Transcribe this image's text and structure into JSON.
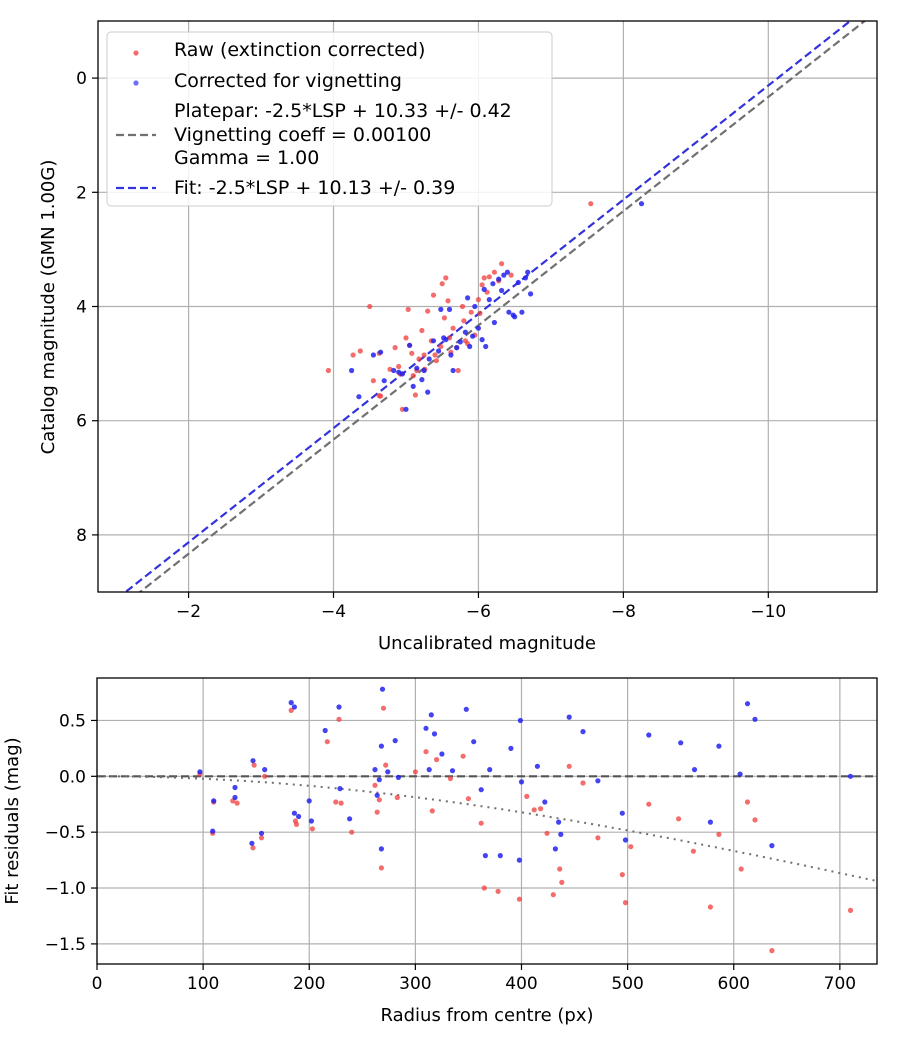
{
  "chart_data": [
    {
      "type": "scatter",
      "xlabel": "Uncalibrated magnitude",
      "ylabel": "Catalog magnitude (GMN 1.00G)",
      "xlim": [
        -0.75,
        -11.5
      ],
      "ylim": [
        9.0,
        -1.0
      ],
      "xticks": [
        -2,
        -4,
        -6,
        -8,
        -10
      ],
      "xtick_labels": [
        "−2",
        "−4",
        "−6",
        "−8",
        "−10"
      ],
      "yticks": [
        0,
        2,
        4,
        6,
        8
      ],
      "ytick_labels": [
        "0",
        "2",
        "4",
        "6",
        "8"
      ],
      "grid": true,
      "legend": {
        "position": "top-left",
        "entries": [
          {
            "label": "Raw (extinction corrected)",
            "kind": "marker",
            "color": "#f03c3c"
          },
          {
            "label": "Corrected for vignetting",
            "kind": "marker",
            "color": "#2222ee"
          },
          {
            "label": "Platepar: -2.5*LSP + 10.33 +/- 0.42",
            "line2": "Vignetting coeff = 0.00100",
            "line3": "Gamma = 1.00",
            "kind": "dashed-line",
            "color": "#707070"
          },
          {
            "label": "Fit: -2.5*LSP + 10.13 +/- 0.39",
            "kind": "dashed-line",
            "color": "#3333dd"
          }
        ]
      },
      "lines": [
        {
          "name": "Platepar",
          "slope": 1.0,
          "intercept": 10.33,
          "color": "#707070",
          "dash": "dashed"
        },
        {
          "name": "Fit",
          "slope": 1.0,
          "intercept": 10.13,
          "color": "#3333dd",
          "dash": "dashed"
        }
      ],
      "series": [
        {
          "name": "Raw (extinction corrected)",
          "color": "#f03c3c",
          "points": [
            [
              -3.93,
              5.12
            ],
            [
              -4.27,
              4.85
            ],
            [
              -4.37,
              4.78
            ],
            [
              -4.5,
              4.0
            ],
            [
              -4.63,
              4.82
            ],
            [
              -4.55,
              5.3
            ],
            [
              -4.63,
              5.56
            ],
            [
              -4.65,
              5.57
            ],
            [
              -4.78,
              5.1
            ],
            [
              -4.85,
              4.72
            ],
            [
              -4.9,
              5.05
            ],
            [
              -4.92,
              5.18
            ],
            [
              -4.95,
              5.8
            ],
            [
              -5.0,
              4.55
            ],
            [
              -5.03,
              4.05
            ],
            [
              -5.05,
              4.68
            ],
            [
              -5.08,
              4.82
            ],
            [
              -5.1,
              5.21
            ],
            [
              -5.13,
              5.55
            ],
            [
              -5.15,
              5.12
            ],
            [
              -5.18,
              4.92
            ],
            [
              -5.22,
              4.42
            ],
            [
              -5.25,
              4.85
            ],
            [
              -5.26,
              5.1
            ],
            [
              -5.3,
              4.08
            ],
            [
              -5.35,
              4.6
            ],
            [
              -5.38,
              3.8
            ],
            [
              -5.4,
              4.85
            ],
            [
              -5.42,
              4.95
            ],
            [
              -5.48,
              4.7
            ],
            [
              -5.5,
              3.6
            ],
            [
              -5.53,
              4.2
            ],
            [
              -5.55,
              3.5
            ],
            [
              -5.58,
              3.9
            ],
            [
              -5.6,
              4.55
            ],
            [
              -5.62,
              4.8
            ],
            [
              -5.65,
              4.38
            ],
            [
              -5.7,
              4.72
            ],
            [
              -5.72,
              5.12
            ],
            [
              -5.78,
              4.0
            ],
            [
              -5.8,
              4.25
            ],
            [
              -5.82,
              4.6
            ],
            [
              -5.85,
              4.65
            ],
            [
              -5.9,
              4.1
            ],
            [
              -5.95,
              4.5
            ],
            [
              -6.0,
              3.88
            ],
            [
              -6.02,
              4.12
            ],
            [
              -6.05,
              3.62
            ],
            [
              -6.08,
              3.5
            ],
            [
              -6.12,
              3.75
            ],
            [
              -6.15,
              3.48
            ],
            [
              -6.22,
              3.4
            ],
            [
              -6.28,
              3.55
            ],
            [
              -6.32,
              3.25
            ],
            [
              -6.45,
              3.45
            ],
            [
              -7.55,
              2.2
            ]
          ]
        },
        {
          "name": "Corrected for vignetting",
          "color": "#2222ee",
          "points": [
            [
              -4.25,
              5.12
            ],
            [
              -4.35,
              5.58
            ],
            [
              -4.55,
              4.85
            ],
            [
              -4.65,
              4.8
            ],
            [
              -4.7,
              5.3
            ],
            [
              -4.83,
              5.12
            ],
            [
              -4.9,
              5.15
            ],
            [
              -4.95,
              5.18
            ],
            [
              -5.0,
              5.8
            ],
            [
              -5.05,
              4.68
            ],
            [
              -5.1,
              5.4
            ],
            [
              -5.15,
              5.08
            ],
            [
              -5.22,
              5.28
            ],
            [
              -5.25,
              5.12
            ],
            [
              -5.3,
              5.5
            ],
            [
              -5.32,
              4.92
            ],
            [
              -5.38,
              4.6
            ],
            [
              -5.45,
              4.78
            ],
            [
              -5.48,
              4.05
            ],
            [
              -5.52,
              4.55
            ],
            [
              -5.55,
              4.58
            ],
            [
              -5.6,
              4.05
            ],
            [
              -5.62,
              4.85
            ],
            [
              -5.65,
              5.12
            ],
            [
              -5.7,
              4.72
            ],
            [
              -5.75,
              4.62
            ],
            [
              -5.82,
              4.45
            ],
            [
              -5.85,
              3.85
            ],
            [
              -5.88,
              4.7
            ],
            [
              -5.92,
              4.52
            ],
            [
              -5.95,
              4.0
            ],
            [
              -6.0,
              4.38
            ],
            [
              -6.05,
              4.58
            ],
            [
              -6.08,
              3.7
            ],
            [
              -6.1,
              4.7
            ],
            [
              -6.15,
              3.88
            ],
            [
              -6.2,
              3.6
            ],
            [
              -6.22,
              4.28
            ],
            [
              -6.28,
              3.52
            ],
            [
              -6.32,
              3.72
            ],
            [
              -6.35,
              3.45
            ],
            [
              -6.4,
              3.4
            ],
            [
              -6.42,
              4.1
            ],
            [
              -6.48,
              4.15
            ],
            [
              -6.5,
              4.18
            ],
            [
              -6.55,
              3.58
            ],
            [
              -6.6,
              4.1
            ],
            [
              -6.65,
              3.5
            ],
            [
              -6.68,
              3.4
            ],
            [
              -6.72,
              3.78
            ],
            [
              -8.25,
              2.2
            ]
          ]
        }
      ]
    },
    {
      "type": "scatter",
      "xlabel": "Radius from centre (px)",
      "ylabel": "Fit residuals (mag)",
      "xlim": [
        0,
        735
      ],
      "ylim": [
        -1.68,
        0.88
      ],
      "xticks": [
        0,
        100,
        200,
        300,
        400,
        500,
        600,
        700
      ],
      "xtick_labels": [
        "0",
        "100",
        "200",
        "300",
        "400",
        "500",
        "600",
        "700"
      ],
      "yticks": [
        0.5,
        0.0,
        -0.5,
        -1.0,
        -1.5
      ],
      "ytick_labels": [
        "0.5",
        "0.0",
        "−0.5",
        "−1.0",
        "−1.5"
      ],
      "grid": true,
      "lines": [
        {
          "name": "zero",
          "kind": "horizontal",
          "y": 0.0,
          "color": "#555555",
          "dash": "dashed"
        },
        {
          "name": "vignetting model",
          "kind": "curve",
          "vignetting_coeff": 0.001,
          "color": "#707070",
          "dash": "dotted"
        }
      ],
      "series": [
        {
          "name": "Raw (extinction corrected)",
          "color": "#f03c3c",
          "points": [
            [
              97,
              0.02
            ],
            [
              109,
              -0.51
            ],
            [
              110,
              -0.23
            ],
            [
              128,
              -0.22
            ],
            [
              132,
              -0.24
            ],
            [
              147,
              -0.64
            ],
            [
              148,
              0.1
            ],
            [
              155,
              -0.55
            ],
            [
              158,
              0.0
            ],
            [
              183,
              0.59
            ],
            [
              187,
              -0.4
            ],
            [
              188,
              -0.43
            ],
            [
              203,
              -0.47
            ],
            [
              217,
              0.31
            ],
            [
              225,
              -0.23
            ],
            [
              228,
              0.51
            ],
            [
              230,
              -0.24
            ],
            [
              240,
              -0.5
            ],
            [
              262,
              -0.08
            ],
            [
              264,
              -0.32
            ],
            [
              266,
              -0.21
            ],
            [
              268,
              -0.82
            ],
            [
              270,
              0.61
            ],
            [
              272,
              0.1
            ],
            [
              283,
              -0.19
            ],
            [
              300,
              0.04
            ],
            [
              310,
              0.22
            ],
            [
              316,
              -0.31
            ],
            [
              320,
              0.15
            ],
            [
              333,
              -0.02
            ],
            [
              345,
              0.18
            ],
            [
              350,
              -0.2
            ],
            [
              362,
              -0.42
            ],
            [
              365,
              -1.0
            ],
            [
              378,
              -1.03
            ],
            [
              398,
              -1.1
            ],
            [
              405,
              -0.18
            ],
            [
              412,
              -0.3
            ],
            [
              418,
              -0.29
            ],
            [
              424,
              -0.51
            ],
            [
              430,
              -1.06
            ],
            [
              436,
              -0.83
            ],
            [
              438,
              -0.95
            ],
            [
              445,
              0.09
            ],
            [
              458,
              -0.06
            ],
            [
              472,
              -0.55
            ],
            [
              495,
              -0.88
            ],
            [
              498,
              -1.13
            ],
            [
              503,
              -0.63
            ],
            [
              520,
              -0.25
            ],
            [
              548,
              -0.38
            ],
            [
              562,
              -0.67
            ],
            [
              578,
              -1.17
            ],
            [
              586,
              -0.52
            ],
            [
              607,
              -0.83
            ],
            [
              613,
              -0.23
            ],
            [
              620,
              -0.39
            ],
            [
              636,
              -1.56
            ],
            [
              710,
              -1.2
            ]
          ]
        },
        {
          "name": "Corrected for vignetting",
          "color": "#2222ee",
          "points": [
            [
              97,
              0.04
            ],
            [
              109,
              -0.49
            ],
            [
              110,
              -0.22
            ],
            [
              130,
              -0.1
            ],
            [
              130,
              -0.19
            ],
            [
              146,
              -0.6
            ],
            [
              147,
              0.14
            ],
            [
              155,
              -0.51
            ],
            [
              158,
              0.06
            ],
            [
              183,
              0.66
            ],
            [
              186,
              0.62
            ],
            [
              186,
              -0.33
            ],
            [
              190,
              -0.36
            ],
            [
              200,
              -0.22
            ],
            [
              202,
              -0.4
            ],
            [
              215,
              0.41
            ],
            [
              228,
              0.62
            ],
            [
              229,
              -0.11
            ],
            [
              238,
              -0.38
            ],
            [
              262,
              0.06
            ],
            [
              264,
              -0.17
            ],
            [
              266,
              -0.03
            ],
            [
              268,
              -0.65
            ],
            [
              268,
              0.27
            ],
            [
              269,
              0.78
            ],
            [
              274,
              0.04
            ],
            [
              281,
              0.32
            ],
            [
              284,
              -0.01
            ],
            [
              310,
              0.43
            ],
            [
              313,
              0.06
            ],
            [
              315,
              0.55
            ],
            [
              318,
              0.38
            ],
            [
              325,
              0.2
            ],
            [
              335,
              0.05
            ],
            [
              348,
              0.6
            ],
            [
              355,
              0.31
            ],
            [
              362,
              -0.12
            ],
            [
              366,
              -0.71
            ],
            [
              370,
              0.06
            ],
            [
              380,
              -0.71
            ],
            [
              390,
              0.25
            ],
            [
              398,
              -0.75
            ],
            [
              399,
              0.5
            ],
            [
              400,
              -0.05
            ],
            [
              415,
              0.09
            ],
            [
              422,
              -0.23
            ],
            [
              432,
              -0.65
            ],
            [
              435,
              -0.41
            ],
            [
              437,
              -0.52
            ],
            [
              445,
              0.53
            ],
            [
              458,
              0.4
            ],
            [
              472,
              -0.04
            ],
            [
              495,
              -0.33
            ],
            [
              498,
              -0.57
            ],
            [
              520,
              0.37
            ],
            [
              550,
              0.3
            ],
            [
              563,
              0.06
            ],
            [
              578,
              -0.41
            ],
            [
              586,
              0.27
            ],
            [
              606,
              0.02
            ],
            [
              613,
              0.65
            ],
            [
              620,
              0.51
            ],
            [
              636,
              -0.62
            ],
            [
              710,
              0.0
            ]
          ]
        }
      ]
    }
  ]
}
